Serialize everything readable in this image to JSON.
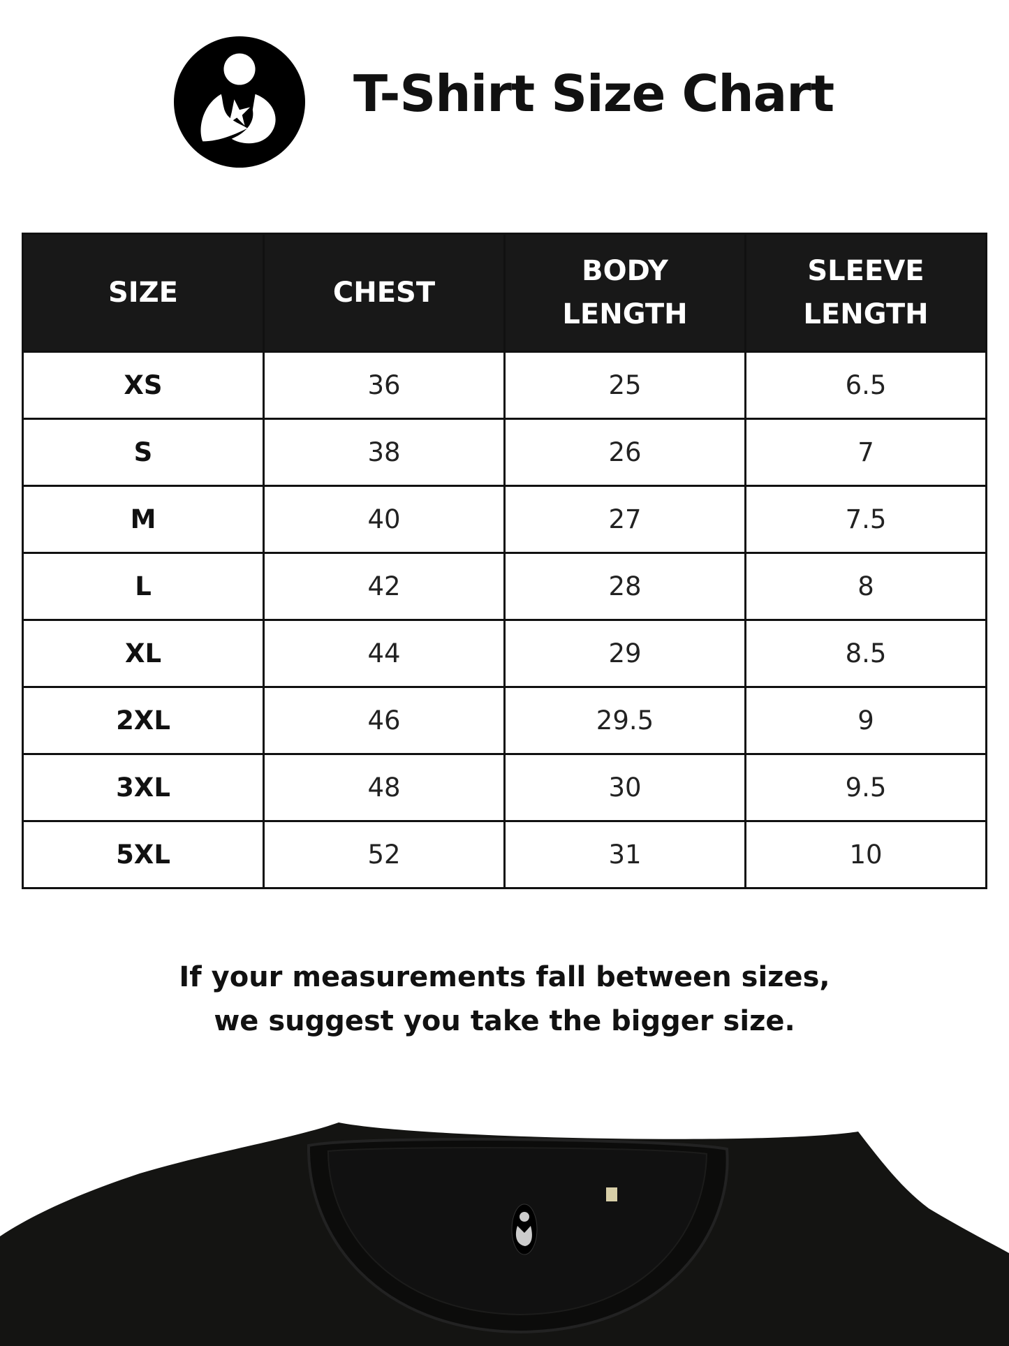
{
  "header": {
    "title": "T-Shirt Size Chart",
    "logo": "mother-and-child-logo"
  },
  "table": {
    "columns": [
      [
        "SIZE"
      ],
      [
        "CHEST"
      ],
      [
        "BODY",
        "LENGTH"
      ],
      [
        "SLEEVE",
        "LENGTH"
      ]
    ],
    "rows": [
      [
        "XS",
        "36",
        "25",
        "6.5"
      ],
      [
        "S",
        "38",
        "26",
        "7"
      ],
      [
        "M",
        "40",
        "27",
        "7.5"
      ],
      [
        "L",
        "42",
        "28",
        "8"
      ],
      [
        "XL",
        "44",
        "29",
        "8.5"
      ],
      [
        "2XL",
        "46",
        "29.5",
        "9"
      ],
      [
        "3XL",
        "48",
        "30",
        "9.5"
      ],
      [
        "5XL",
        "52",
        "31",
        "10"
      ]
    ]
  },
  "note": {
    "line1": "If your measurements fall between sizes,",
    "line2": "we suggest you take the bigger size."
  },
  "colors": {
    "header_bg": "#181818",
    "shirt": "#141412"
  }
}
